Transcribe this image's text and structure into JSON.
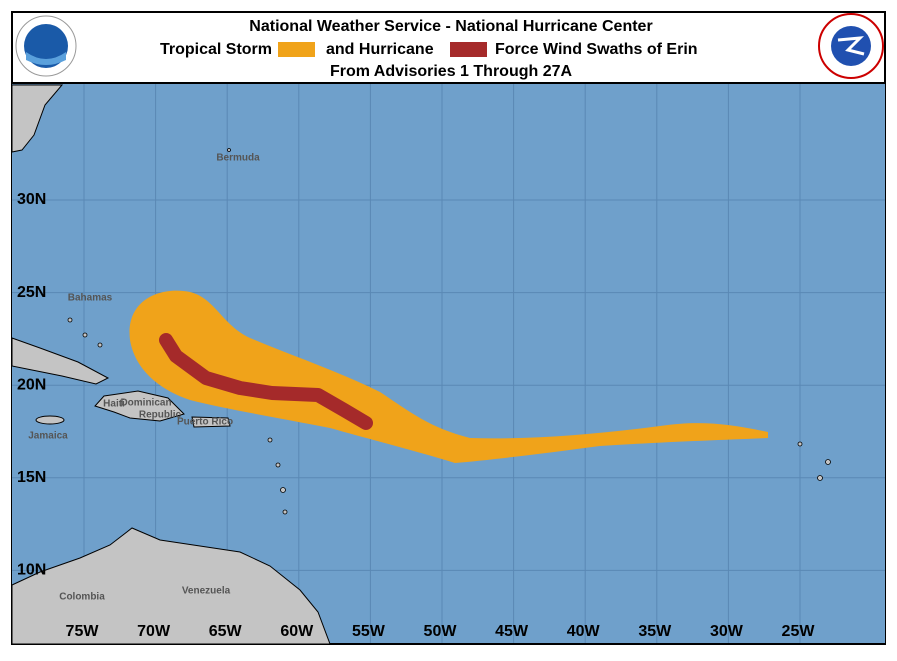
{
  "header": {
    "title": "National Weather Service - National Hurricane Center",
    "legend_ts": "Tropical Storm",
    "legend_hu": "and Hurricane",
    "legend_tail": "Force Wind Swaths of Erin",
    "subtitle": "From Advisories 1 Through 27A"
  },
  "map": {
    "lat_labels": [
      "30N",
      "25N",
      "20N",
      "15N",
      "10N"
    ],
    "lon_labels": [
      "75W",
      "70W",
      "65W",
      "60W",
      "55W",
      "50W",
      "45W",
      "40W",
      "35W",
      "30W",
      "25W"
    ],
    "places": [
      "Bermuda",
      "Bahamas",
      "Haiti",
      "Dominican",
      "Republic",
      "Puerto Rico",
      "Jamaica",
      "Colombia",
      "Venezuela"
    ]
  }
}
